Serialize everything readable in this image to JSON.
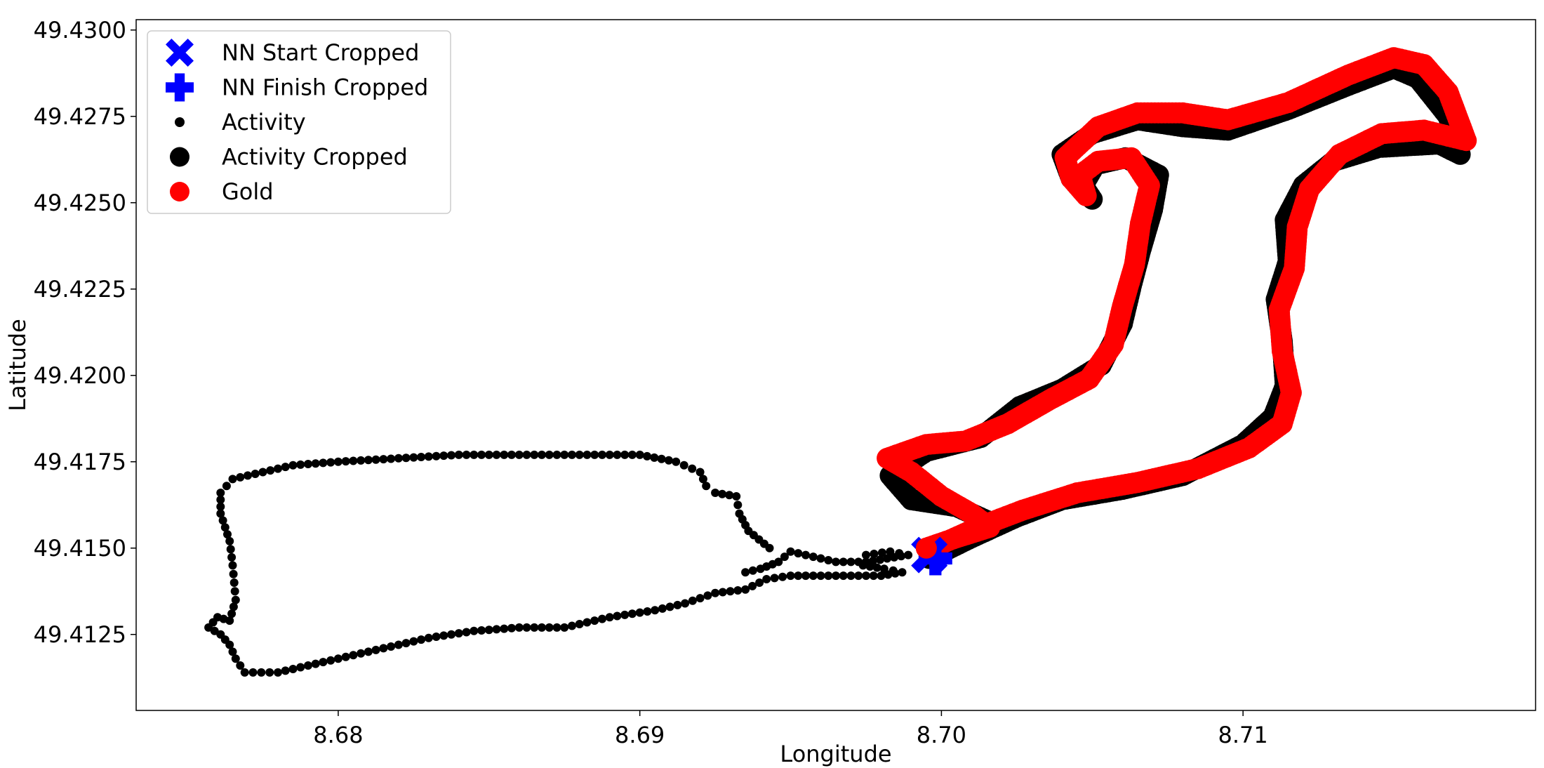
{
  "chart_data": {
    "type": "scatter",
    "title": "",
    "xlabel": "Longitude",
    "ylabel": "Latitude",
    "xlim": [
      8.6733,
      8.7197
    ],
    "ylim": [
      49.4103,
      49.4303
    ],
    "xticks": [
      8.68,
      8.69,
      8.7,
      8.71
    ],
    "xtick_labels": [
      "8.68",
      "8.69",
      "8.70",
      "8.71"
    ],
    "yticks": [
      49.4125,
      49.415,
      49.4175,
      49.42,
      49.4225,
      49.425,
      49.4275,
      49.43
    ],
    "ytick_labels": [
      "49.4125",
      "49.4150",
      "49.4175",
      "49.4200",
      "49.4225",
      "49.4250",
      "49.4275",
      "49.4300"
    ],
    "grid": false,
    "legend_position": "upper-left",
    "legend": [
      {
        "label": "NN Start Cropped",
        "marker": "x-filled",
        "color": "#0000ff"
      },
      {
        "label": "NN Finish Cropped",
        "marker": "plus-filled",
        "color": "#0000ff"
      },
      {
        "label": "Activity",
        "marker": "small-circle",
        "color": "#000000"
      },
      {
        "label": "Activity Cropped",
        "marker": "large-circle",
        "color": "#000000"
      },
      {
        "label": "Gold",
        "marker": "large-circle",
        "color": "#ff0000"
      }
    ],
    "series": [
      {
        "name": "Activity",
        "color": "#000000",
        "marker": "small-circle",
        "points": [
          [
            8.6943,
            49.415
          ],
          [
            8.6936,
            49.4155
          ],
          [
            8.6933,
            49.416
          ],
          [
            8.6932,
            49.4165
          ],
          [
            8.6925,
            49.4166
          ],
          [
            8.6922,
            49.4168
          ],
          [
            8.692,
            49.4172
          ],
          [
            8.6912,
            49.4175
          ],
          [
            8.69,
            49.4177
          ],
          [
            8.688,
            49.4177
          ],
          [
            8.686,
            49.4177
          ],
          [
            8.684,
            49.4177
          ],
          [
            8.682,
            49.4176
          ],
          [
            8.68,
            49.4175
          ],
          [
            8.6785,
            49.4174
          ],
          [
            8.677,
            49.4171
          ],
          [
            8.6765,
            49.417
          ],
          [
            8.6761,
            49.4166
          ],
          [
            8.6761,
            49.416
          ],
          [
            8.6764,
            49.4152
          ],
          [
            8.6765,
            49.4145
          ],
          [
            8.6766,
            49.4135
          ],
          [
            8.6764,
            49.4129
          ],
          [
            8.676,
            49.413
          ],
          [
            8.6757,
            49.4127
          ],
          [
            8.6761,
            49.4125
          ],
          [
            8.6764,
            49.4122
          ],
          [
            8.6766,
            49.4118
          ],
          [
            8.6769,
            49.4114
          ],
          [
            8.678,
            49.4114
          ],
          [
            8.679,
            49.4116
          ],
          [
            8.68,
            49.4118
          ],
          [
            8.6815,
            49.4121
          ],
          [
            8.683,
            49.4124
          ],
          [
            8.6845,
            49.4126
          ],
          [
            8.686,
            49.4127
          ],
          [
            8.6875,
            49.4127
          ],
          [
            8.689,
            49.413
          ],
          [
            8.6905,
            49.4132
          ],
          [
            8.6915,
            49.4134
          ],
          [
            8.6925,
            49.4137
          ],
          [
            8.6935,
            49.4138
          ],
          [
            8.6942,
            49.4141
          ],
          [
            8.695,
            49.4142
          ],
          [
            8.696,
            49.4142
          ],
          [
            8.697,
            49.4142
          ],
          [
            8.698,
            49.4142
          ],
          [
            8.6987,
            49.4143
          ],
          [
            8.6981,
            49.4144
          ],
          [
            8.6974,
            49.4145
          ],
          [
            8.6975,
            49.4148
          ],
          [
            8.6983,
            49.4149
          ],
          [
            8.6989,
            49.4148
          ],
          [
            8.6975,
            49.4146
          ],
          [
            8.6965,
            49.4146
          ],
          [
            8.6955,
            49.4148
          ],
          [
            8.695,
            49.4149
          ],
          [
            8.6946,
            49.4146
          ],
          [
            8.694,
            49.4144
          ],
          [
            8.6935,
            49.4143
          ]
        ]
      },
      {
        "name": "Activity Cropped",
        "color": "#000000",
        "marker": "large-circle",
        "points": [
          [
            8.6996,
            49.4147
          ],
          [
            8.701,
            49.4153
          ],
          [
            8.7025,
            49.4159
          ],
          [
            8.704,
            49.4164
          ],
          [
            8.706,
            49.4167
          ],
          [
            8.708,
            49.4171
          ],
          [
            8.71,
            49.418
          ],
          [
            8.711,
            49.4188
          ],
          [
            8.7114,
            49.4197
          ],
          [
            8.7113,
            49.421
          ],
          [
            8.7111,
            49.4222
          ],
          [
            8.7115,
            49.4233
          ],
          [
            8.7114,
            49.4245
          ],
          [
            8.712,
            49.4255
          ],
          [
            8.713,
            49.4262
          ],
          [
            8.7145,
            49.4266
          ],
          [
            8.7165,
            49.4267
          ],
          [
            8.7172,
            49.4264
          ],
          [
            8.7168,
            49.4275
          ],
          [
            8.7158,
            49.4286
          ],
          [
            8.715,
            49.4289
          ],
          [
            8.7135,
            49.4284
          ],
          [
            8.7115,
            49.4277
          ],
          [
            8.7095,
            49.4271
          ],
          [
            8.708,
            49.4272
          ],
          [
            8.7065,
            49.4274
          ],
          [
            8.705,
            49.427
          ],
          [
            8.704,
            49.4264
          ],
          [
            8.7043,
            49.4257
          ],
          [
            8.705,
            49.4251
          ],
          [
            8.7047,
            49.4255
          ],
          [
            8.7051,
            49.4261
          ],
          [
            8.7061,
            49.4263
          ],
          [
            8.7072,
            49.4258
          ],
          [
            8.707,
            49.4248
          ],
          [
            8.7066,
            49.4236
          ],
          [
            8.7063,
            49.4226
          ],
          [
            8.706,
            49.4215
          ],
          [
            8.7053,
            49.4203
          ],
          [
            8.704,
            49.4196
          ],
          [
            8.7026,
            49.4191
          ],
          [
            8.7013,
            49.4182
          ],
          [
            8.6995,
            49.4178
          ],
          [
            8.6983,
            49.4171
          ],
          [
            8.699,
            49.4164
          ],
          [
            8.7005,
            49.4162
          ],
          [
            8.7015,
            49.4158
          ],
          [
            8.7006,
            49.4152
          ],
          [
            8.6998,
            49.4148
          ]
        ]
      },
      {
        "name": "Gold",
        "color": "#ff0000",
        "marker": "large-circle",
        "points": [
          [
            8.6997,
            49.415
          ],
          [
            8.7012,
            49.4156
          ],
          [
            8.7027,
            49.4161
          ],
          [
            8.7045,
            49.4166
          ],
          [
            8.7065,
            49.4169
          ],
          [
            8.7085,
            49.4173
          ],
          [
            8.7102,
            49.4179
          ],
          [
            8.7113,
            49.4186
          ],
          [
            8.7116,
            49.4195
          ],
          [
            8.7113,
            49.4207
          ],
          [
            8.7112,
            49.4219
          ],
          [
            8.7117,
            49.4231
          ],
          [
            8.7118,
            49.4243
          ],
          [
            8.7122,
            49.4254
          ],
          [
            8.7132,
            49.4264
          ],
          [
            8.7146,
            49.427
          ],
          [
            8.716,
            49.4271
          ],
          [
            8.7174,
            49.4268
          ],
          [
            8.7168,
            49.4282
          ],
          [
            8.716,
            49.429
          ],
          [
            8.715,
            49.4292
          ],
          [
            8.7135,
            49.4287
          ],
          [
            8.7115,
            49.4279
          ],
          [
            8.7095,
            49.4274
          ],
          [
            8.708,
            49.4276
          ],
          [
            8.7065,
            49.4276
          ],
          [
            8.7052,
            49.4272
          ],
          [
            8.7041,
            49.4263
          ],
          [
            8.7043,
            49.4257
          ],
          [
            8.7048,
            49.4252
          ],
          [
            8.7046,
            49.4258
          ],
          [
            8.7052,
            49.4262
          ],
          [
            8.7063,
            49.4263
          ],
          [
            8.7069,
            49.4255
          ],
          [
            8.7066,
            49.4244
          ],
          [
            8.7064,
            49.4232
          ],
          [
            8.706,
            49.422
          ],
          [
            8.7057,
            49.4209
          ],
          [
            8.7049,
            49.4199
          ],
          [
            8.7036,
            49.4193
          ],
          [
            8.7022,
            49.4186
          ],
          [
            8.7008,
            49.4181
          ],
          [
            8.6995,
            49.418
          ],
          [
            8.6982,
            49.4176
          ],
          [
            8.699,
            49.4172
          ],
          [
            8.7,
            49.4165
          ],
          [
            8.701,
            49.416
          ],
          [
            8.7016,
            49.4156
          ],
          [
            8.7005,
            49.4153
          ],
          [
            8.6995,
            49.415
          ]
        ]
      },
      {
        "name": "NN Start Cropped",
        "color": "#0000ff",
        "marker": "x-filled",
        "points": [
          [
            8.6996,
            49.4148
          ]
        ]
      },
      {
        "name": "NN Finish Cropped",
        "color": "#0000ff",
        "marker": "plus-filled",
        "points": [
          [
            8.6998,
            49.4147
          ]
        ]
      }
    ]
  }
}
